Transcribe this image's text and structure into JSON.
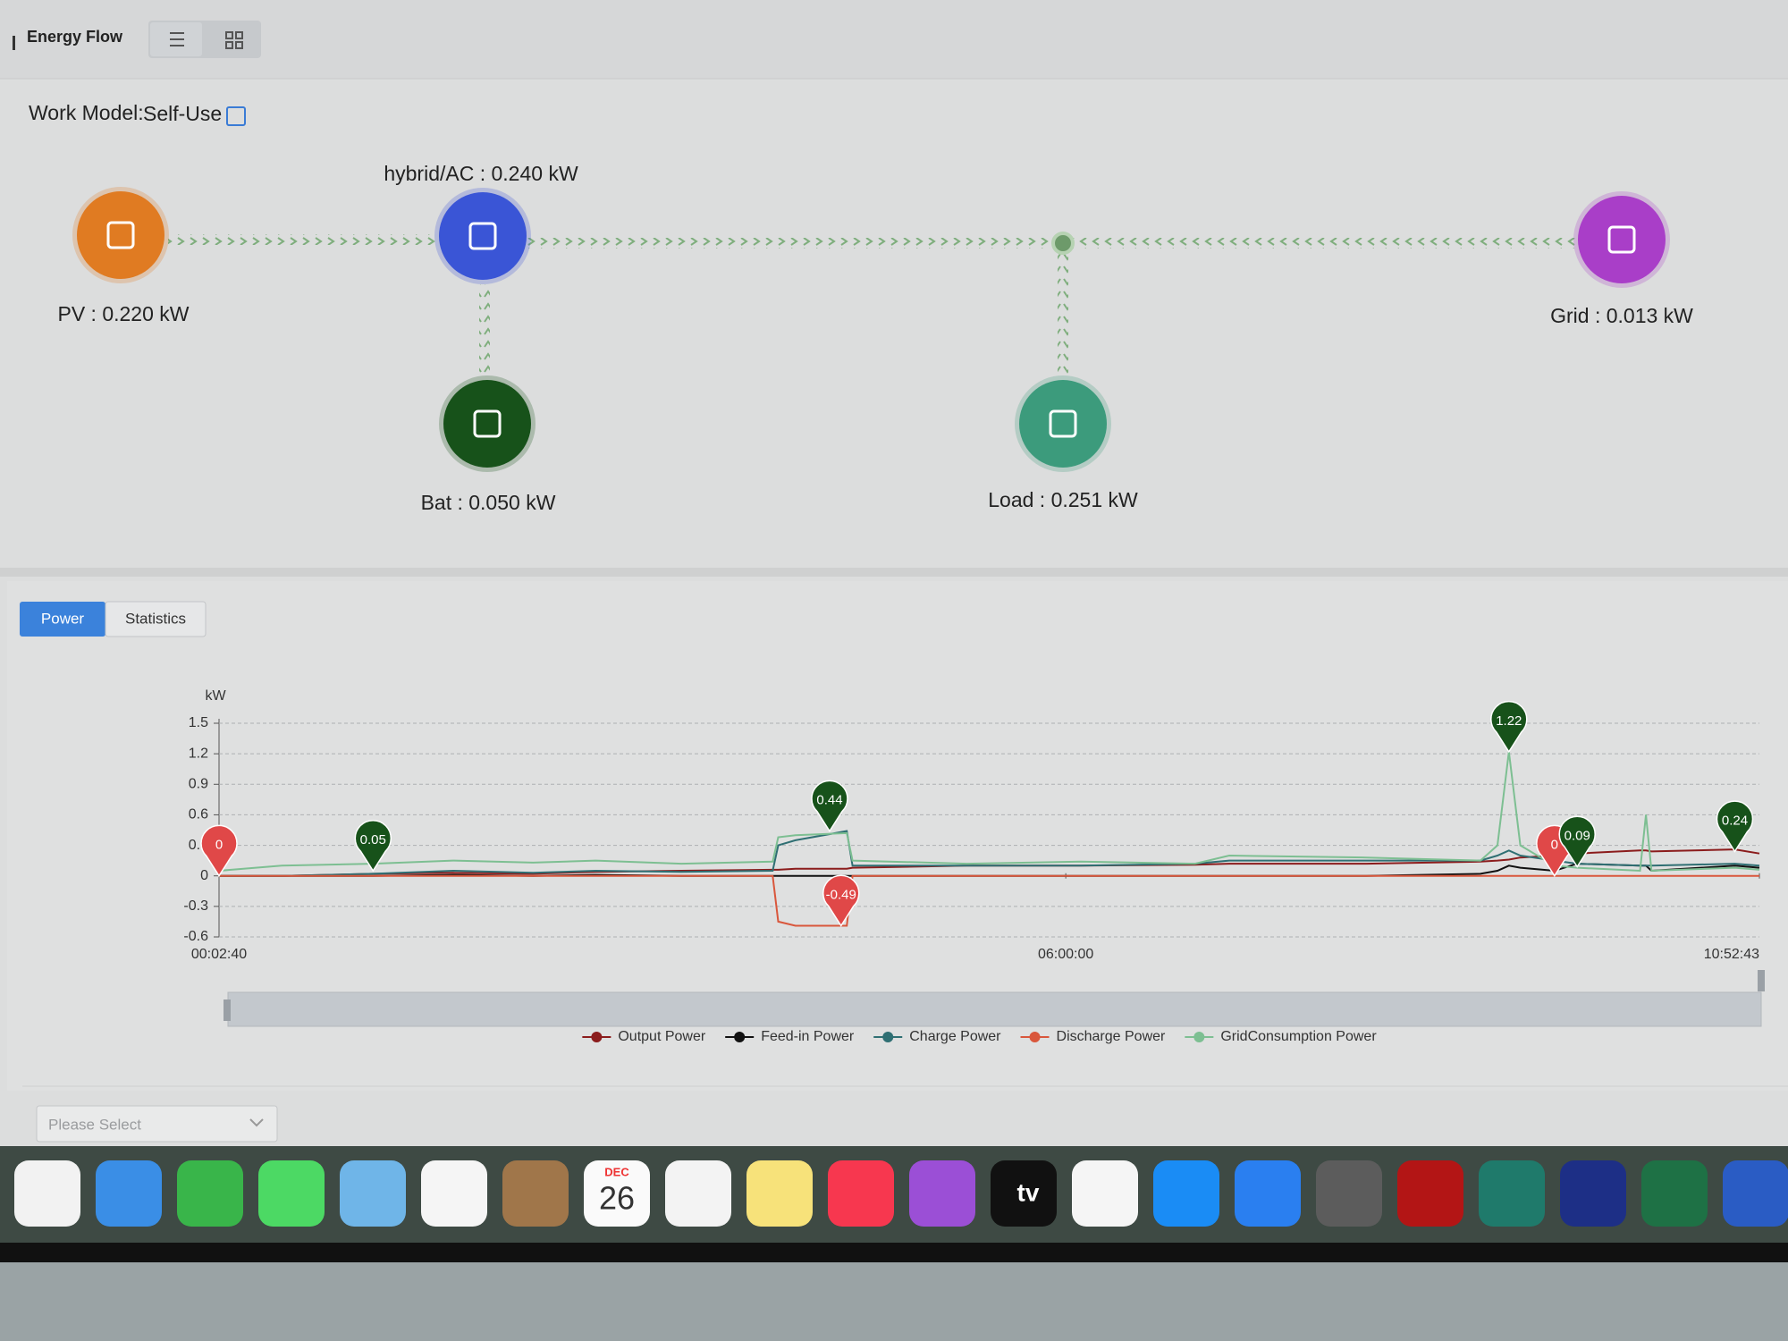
{
  "header": {
    "title": "Energy Flow"
  },
  "work_model": {
    "label": "Work Model:",
    "value": "Self-Use"
  },
  "nodes": [
    {
      "label": "PV : 0.220 kW",
      "color": "#e07b22"
    },
    {
      "label": "hybrid/AC : 0.240 kW",
      "color": "#3a55d6"
    },
    {
      "label": "Bat : 0.050 kW",
      "color": "#17521a"
    },
    {
      "label": "Load : 0.251 kW",
      "color": "#3c9b7c"
    },
    {
      "label": "Grid : 0.013 kW",
      "color": "#a93ec8"
    }
  ],
  "tabs": [
    "Power",
    "Statistics"
  ],
  "chart_data": {
    "type": "line",
    "ylabel": "kW",
    "x": [
      160,
      1750,
      4060,
      6085,
      8110,
      9700,
      11865,
      14180,
      14320,
      14755,
      16055,
      16200,
      19090,
      21980,
      24870,
      25740,
      29210,
      32100,
      32530,
      32820,
      33110,
      33975,
      34550,
      36140,
      36290,
      36430,
      38540,
      39163
    ],
    "xlim": [
      160,
      39163
    ],
    "xticks": [
      {
        "value": 160,
        "label": "00:02:40"
      },
      {
        "value": 21600,
        "label": "06:00:00"
      },
      {
        "value": 39163,
        "label": "10:52:43"
      }
    ],
    "ylim": [
      -0.6,
      1.5
    ],
    "yticks": [
      -0.6,
      -0.3,
      0,
      0.3,
      0.6,
      0.9,
      1.2,
      1.5
    ],
    "grid": true,
    "legend": "bottom",
    "series": [
      {
        "name": "Output Power",
        "color": "#8b1c1c",
        "values": [
          0,
          0,
          0.02,
          0.03,
          0.02,
          0.04,
          0.05,
          0.06,
          0.06,
          0.07,
          0.07,
          0.08,
          0.1,
          0.1,
          0.11,
          0.12,
          0.12,
          0.14,
          0.15,
          0.16,
          0.18,
          0.2,
          0.22,
          0.25,
          0.25,
          0.24,
          0.26,
          0.22
        ]
      },
      {
        "name": "Feed-in Power",
        "color": "#111111",
        "values": [
          0,
          0,
          0,
          0.01,
          0,
          0.01,
          0,
          0,
          0,
          0,
          0,
          0,
          0,
          0,
          0,
          0,
          0,
          0.02,
          0.05,
          0.1,
          0.08,
          0.05,
          0.12,
          0.1,
          0.1,
          0.05,
          0.1,
          0.08
        ]
      },
      {
        "name": "Charge Power",
        "color": "#2f6f73",
        "values": [
          0,
          0,
          0.02,
          0.05,
          0.03,
          0.05,
          0.04,
          0.05,
          0.3,
          0.35,
          0.44,
          0.1,
          0.1,
          0.1,
          0.12,
          0.15,
          0.15,
          0.15,
          0.2,
          0.25,
          0.2,
          0.15,
          0.12,
          0.1,
          0.1,
          0.1,
          0.12,
          0.1
        ]
      },
      {
        "name": "Discharge Power",
        "color": "#d9573c",
        "values": [
          0,
          0,
          0,
          0,
          0,
          0,
          0,
          0,
          -0.45,
          -0.49,
          -0.49,
          0,
          0,
          0,
          0,
          0,
          0,
          0,
          0,
          0,
          0,
          0,
          0,
          0,
          0,
          0,
          0,
          0
        ]
      },
      {
        "name": "GridConsumption Power",
        "color": "#7dbf92",
        "values": [
          0.05,
          0.1,
          0.12,
          0.15,
          0.13,
          0.15,
          0.12,
          0.14,
          0.38,
          0.4,
          0.42,
          0.15,
          0.12,
          0.14,
          0.12,
          0.2,
          0.18,
          0.15,
          0.3,
          1.22,
          0.3,
          0.1,
          0.08,
          0.05,
          0.6,
          0.05,
          0.08,
          0.06
        ]
      }
    ],
    "pins": [
      {
        "x": 160,
        "value": 0,
        "color": "#e04848"
      },
      {
        "x": 4060,
        "value": 0.05,
        "color": "#17521a"
      },
      {
        "x": 15620,
        "value": 0.44,
        "color": "#17521a"
      },
      {
        "x": 15910,
        "value": -0.49,
        "color": "#e04848"
      },
      {
        "x": 32820,
        "value": 1.22,
        "color": "#17521a"
      },
      {
        "x": 33975,
        "value": 0,
        "color": "#e04848"
      },
      {
        "x": 34550,
        "value": 0.09,
        "color": "#17521a"
      },
      {
        "x": 38540,
        "value": 0.24,
        "color": "#17521a"
      }
    ]
  },
  "select": {
    "placeholder": "Please Select"
  },
  "dock": {
    "calendar_month": "DEC",
    "calendar_day": "26",
    "tv_label": "tv"
  }
}
